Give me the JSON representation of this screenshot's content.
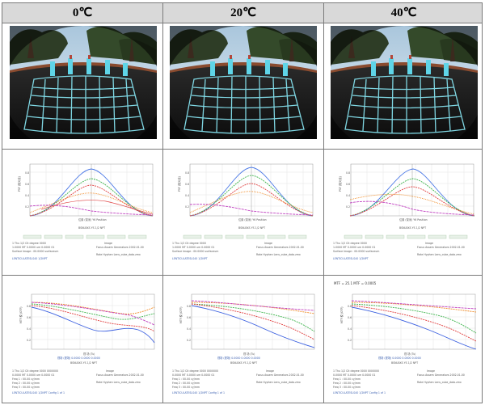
{
  "table": {
    "headers": [
      "0℃",
      "20℃",
      "40℃"
    ],
    "mtf_titles": [
      "",
      "",
      "MTF = 25.1 MTF = 0.0005"
    ]
  },
  "colors": {
    "header_bg": "#d9d9d9",
    "border": "#7a7a7a",
    "sky": "#cfe0ee",
    "grid_lines": "#7fd6e2",
    "curve_blue": "#3a5fe0",
    "curve_green": "#3cb44b",
    "curve_red": "#e03c3c",
    "curve_orange": "#f08c28",
    "curve_magenta": "#c040c0"
  },
  "icons": {
    "photo": "fisheye-camera-photo",
    "psf": "psf-curve-plot",
    "mtf": "mtf-curve-plot"
  }
}
